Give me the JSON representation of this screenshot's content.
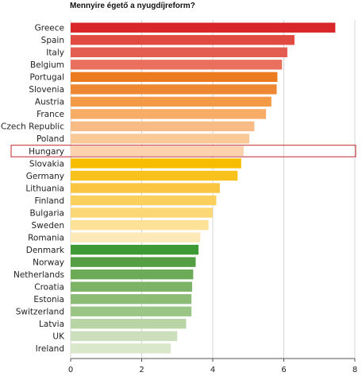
{
  "chart_data": {
    "type": "bar",
    "orientation": "horizontal",
    "title": "Mennyire égető a nyugdíjreform?",
    "categories": [
      "Greece",
      "Spain",
      "Italy",
      "Belgium",
      "Portugal",
      "Slovenia",
      "Austria",
      "France",
      "Czech Republic",
      "Poland",
      "Hungary",
      "Slovakia",
      "Germany",
      "Lithuania",
      "Finland",
      "Bulgaria",
      "Sweden",
      "Romania",
      "Denmark",
      "Norway",
      "Netherlands",
      "Croatia",
      "Estonia",
      "Switzerland",
      "Latvia",
      "UK",
      "Ireland"
    ],
    "values": [
      7.45,
      6.3,
      6.1,
      5.95,
      5.82,
      5.8,
      5.65,
      5.5,
      5.17,
      5.03,
      4.87,
      4.8,
      4.7,
      4.2,
      4.1,
      4.0,
      3.88,
      3.65,
      3.6,
      3.52,
      3.45,
      3.42,
      3.4,
      3.4,
      3.25,
      3.0,
      2.82
    ],
    "colors": [
      "#d9262b",
      "#e04a41",
      "#e35d50",
      "#e8705d",
      "#ec7a1e",
      "#ee8731",
      "#f39a46",
      "#f8ac65",
      "#f9bb85",
      "#fbc898",
      "#fcd2ae",
      "#f7bd00",
      "#f8c11b",
      "#fac642",
      "#fbcf5c",
      "#fbd875",
      "#fce196",
      "#fde9b8",
      "#3d9a35",
      "#549f44",
      "#6bab58",
      "#7bb467",
      "#8cbc76",
      "#9bc585",
      "#b8d5a5",
      "#ccdfbd",
      "#d9e7ca"
    ],
    "highlight": "Hungary",
    "xlim": [
      0,
      8
    ],
    "xticks": [
      0,
      2,
      4,
      6,
      8
    ],
    "grid": true,
    "xlabel": "",
    "ylabel": ""
  }
}
